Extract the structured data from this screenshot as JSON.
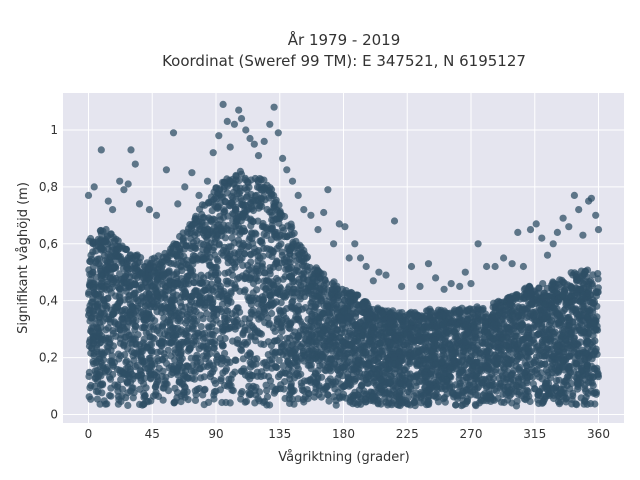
{
  "chart_data": {
    "type": "scatter",
    "title_lines": [
      "År 1979 - 2019",
      "Koordinat (Sweref 99 TM): E 347521, N 6195127"
    ],
    "xlabel": "Vågriktning (grader)",
    "ylabel": "Signifikant våghöjd (m)",
    "xlim": [
      -18,
      378
    ],
    "ylim": [
      -0.03,
      1.13
    ],
    "x_ticks": [
      0,
      45,
      90,
      135,
      180,
      225,
      270,
      315,
      360
    ],
    "x_tick_labels": [
      "0",
      "45",
      "90",
      "135",
      "180",
      "225",
      "270",
      "315",
      "360"
    ],
    "y_ticks": [
      0,
      0.2,
      0.4,
      0.6,
      0.8,
      1
    ],
    "y_tick_labels": [
      "0",
      "0,2",
      "0,4",
      "0,6",
      "0,8",
      "1"
    ],
    "grid": true,
    "colors": {
      "marker": "#2f4f66",
      "plot_bg": "#e5e5ef",
      "grid": "#ffffff",
      "text": "#333333"
    },
    "envelope": {
      "x": [
        0,
        10,
        20,
        30,
        40,
        50,
        60,
        70,
        80,
        90,
        100,
        110,
        120,
        130,
        140,
        150,
        160,
        170,
        180,
        190,
        200,
        210,
        220,
        230,
        240,
        250,
        260,
        270,
        280,
        290,
        300,
        310,
        320,
        330,
        340,
        350,
        360
      ],
      "y_max": [
        0.62,
        0.66,
        0.62,
        0.58,
        0.55,
        0.56,
        0.6,
        0.66,
        0.74,
        0.8,
        0.84,
        0.86,
        0.84,
        0.8,
        0.7,
        0.6,
        0.52,
        0.48,
        0.44,
        0.42,
        0.38,
        0.37,
        0.36,
        0.36,
        0.37,
        0.37,
        0.37,
        0.38,
        0.38,
        0.4,
        0.42,
        0.45,
        0.46,
        0.47,
        0.5,
        0.51,
        0.5
      ],
      "y_min": 0.03
    },
    "outliers": [
      [
        0,
        0.77
      ],
      [
        4,
        0.8
      ],
      [
        9,
        0.93
      ],
      [
        14,
        0.75
      ],
      [
        17,
        0.72
      ],
      [
        22,
        0.82
      ],
      [
        25,
        0.79
      ],
      [
        28,
        0.81
      ],
      [
        30,
        0.93
      ],
      [
        33,
        0.88
      ],
      [
        36,
        0.74
      ],
      [
        43,
        0.72
      ],
      [
        48,
        0.7
      ],
      [
        55,
        0.86
      ],
      [
        60,
        0.99
      ],
      [
        63,
        0.74
      ],
      [
        68,
        0.8
      ],
      [
        73,
        0.85
      ],
      [
        78,
        0.77
      ],
      [
        84,
        0.82
      ],
      [
        88,
        0.92
      ],
      [
        92,
        0.98
      ],
      [
        95,
        1.09
      ],
      [
        98,
        1.03
      ],
      [
        100,
        0.94
      ],
      [
        103,
        1.02
      ],
      [
        106,
        1.07
      ],
      [
        108,
        1.04
      ],
      [
        111,
        1.0
      ],
      [
        114,
        0.97
      ],
      [
        117,
        0.95
      ],
      [
        120,
        0.91
      ],
      [
        124,
        0.96
      ],
      [
        128,
        1.02
      ],
      [
        131,
        1.08
      ],
      [
        134,
        0.99
      ],
      [
        137,
        0.9
      ],
      [
        140,
        0.86
      ],
      [
        144,
        0.82
      ],
      [
        148,
        0.77
      ],
      [
        152,
        0.72
      ],
      [
        157,
        0.7
      ],
      [
        162,
        0.65
      ],
      [
        166,
        0.71
      ],
      [
        169,
        0.79
      ],
      [
        173,
        0.6
      ],
      [
        177,
        0.67
      ],
      [
        181,
        0.66
      ],
      [
        184,
        0.55
      ],
      [
        188,
        0.6
      ],
      [
        192,
        0.55
      ],
      [
        196,
        0.52
      ],
      [
        201,
        0.47
      ],
      [
        205,
        0.5
      ],
      [
        210,
        0.49
      ],
      [
        216,
        0.68
      ],
      [
        221,
        0.45
      ],
      [
        228,
        0.52
      ],
      [
        234,
        0.45
      ],
      [
        240,
        0.53
      ],
      [
        245,
        0.48
      ],
      [
        251,
        0.44
      ],
      [
        256,
        0.46
      ],
      [
        262,
        0.45
      ],
      [
        266,
        0.5
      ],
      [
        270,
        0.46
      ],
      [
        275,
        0.6
      ],
      [
        281,
        0.52
      ],
      [
        287,
        0.52
      ],
      [
        293,
        0.55
      ],
      [
        299,
        0.53
      ],
      [
        303,
        0.64
      ],
      [
        307,
        0.52
      ],
      [
        312,
        0.65
      ],
      [
        316,
        0.67
      ],
      [
        320,
        0.62
      ],
      [
        324,
        0.56
      ],
      [
        328,
        0.6
      ],
      [
        331,
        0.64
      ],
      [
        335,
        0.69
      ],
      [
        339,
        0.66
      ],
      [
        343,
        0.77
      ],
      [
        346,
        0.72
      ],
      [
        349,
        0.63
      ],
      [
        353,
        0.75
      ],
      [
        355,
        0.76
      ],
      [
        358,
        0.7
      ],
      [
        360,
        0.65
      ]
    ]
  }
}
